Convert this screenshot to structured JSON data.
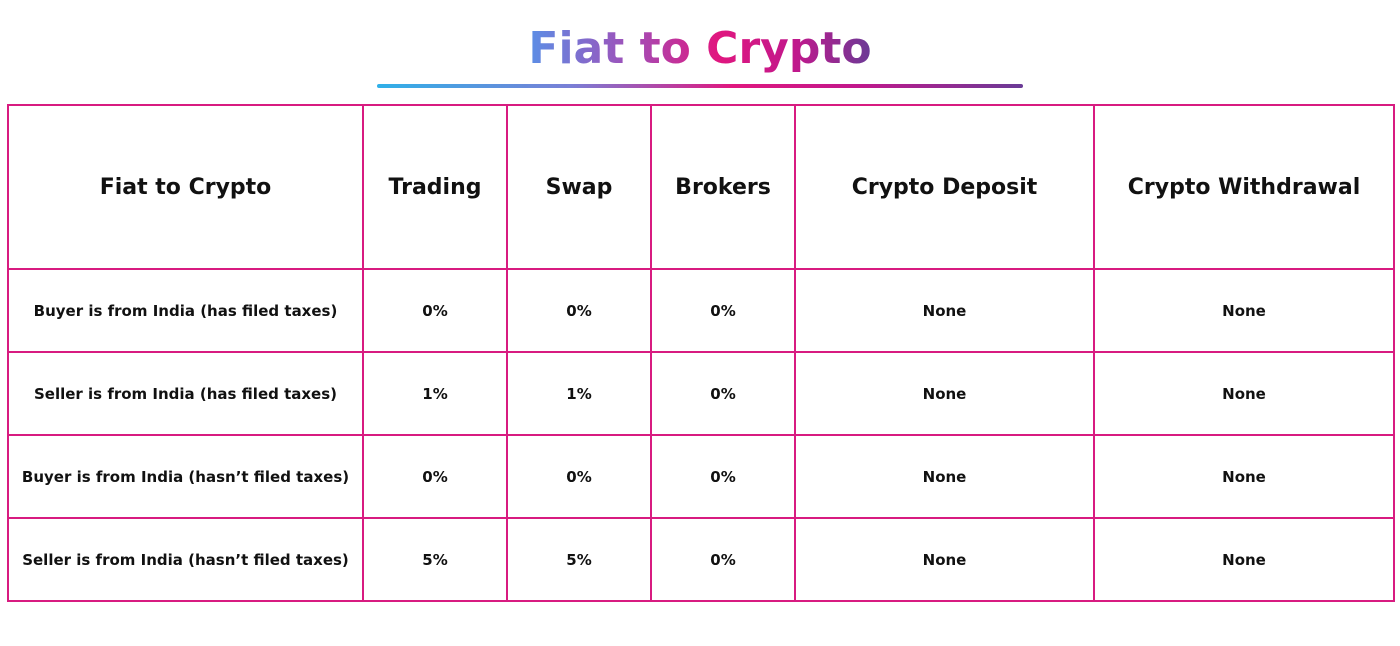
{
  "title": "Fiat to Crypto",
  "colors": {
    "border": "#d81b80",
    "title_gradient": [
      "#5b8fe6",
      "#e0177f",
      "#6a3b96"
    ],
    "underline_gradient": [
      "#2fb0e8",
      "#e0177f",
      "#6a3b96"
    ]
  },
  "table": {
    "headers": [
      "Fiat to Crypto",
      "Trading",
      "Swap",
      "Brokers",
      "Crypto Deposit",
      "Crypto Withdrawal"
    ],
    "rows": [
      {
        "label": "Buyer is from India (has filed taxes)",
        "cells": [
          "0%",
          "0%",
          "0%",
          "None",
          "None"
        ]
      },
      {
        "label": "Seller is from India (has filed taxes)",
        "cells": [
          "1%",
          "1%",
          "0%",
          "None",
          "None"
        ]
      },
      {
        "label": "Buyer is from India (hasn’t filed taxes)",
        "cells": [
          "0%",
          "0%",
          "0%",
          "None",
          "None"
        ]
      },
      {
        "label": "Seller is from India (hasn’t filed taxes)",
        "cells": [
          "5%",
          "5%",
          "0%",
          "None",
          "None"
        ]
      }
    ]
  }
}
